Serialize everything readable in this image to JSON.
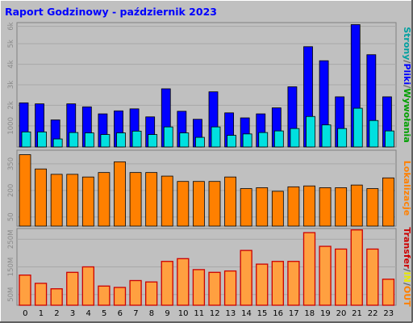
{
  "chart_data": [
    {
      "type": "bar",
      "title": "Raport Godzinowy -  październik 2023",
      "categories": [
        "0",
        "1",
        "2",
        "3",
        "4",
        "5",
        "6",
        "7",
        "8",
        "9",
        "10",
        "11",
        "12",
        "13",
        "14",
        "15",
        "16",
        "17",
        "18",
        "19",
        "20",
        "21",
        "22",
        "23"
      ],
      "ylabel_parts": [
        "Strony",
        "Pliki",
        "Wywołania"
      ],
      "ylabel_colors": {
        "Strony": "#00A0A0",
        "Pliki": "#0000FF",
        "Wywołania": "#00A000"
      },
      "yticks": [
        "1000",
        "2k",
        "3k",
        "4k",
        "5k",
        "6k"
      ],
      "ylim": [
        0,
        6200
      ],
      "grid": true,
      "series": [
        {
          "name": "Pliki",
          "color": "#0000FF",
          "values": [
            2200,
            2150,
            1350,
            2150,
            2000,
            1650,
            1800,
            1900,
            1500,
            2900,
            1780,
            1380,
            2750,
            1700,
            1450,
            1650,
            1950,
            3000,
            5000,
            4300,
            2500,
            6100,
            4600,
            2500
          ]
        },
        {
          "name": "Strony",
          "color": "#00E0E0",
          "values": [
            750,
            750,
            400,
            720,
            700,
            620,
            700,
            790,
            620,
            1000,
            700,
            480,
            1000,
            580,
            650,
            720,
            800,
            920,
            1520,
            1100,
            920,
            1930,
            1320,
            800
          ]
        }
      ]
    },
    {
      "type": "bar",
      "ylabel": "Lokalizacje",
      "ylabel_color": "#FF8000",
      "yticks": [
        "50",
        "200",
        "350"
      ],
      "ylim": [
        0,
        425
      ],
      "grid": true,
      "series": [
        {
          "name": "Lokalizacje",
          "color": "#FF8000",
          "values": [
            400,
            320,
            290,
            290,
            275,
            300,
            360,
            300,
            300,
            280,
            250,
            250,
            250,
            275,
            210,
            215,
            195,
            220,
            225,
            215,
            215,
            230,
            210,
            270
          ]
        }
      ]
    },
    {
      "type": "bar",
      "ylabel_parts": [
        "Transfer",
        "IN",
        "OUT"
      ],
      "ylabel_colors": {
        "Transfer": "#CC0000",
        "IN": "#E8E800",
        "OUT": "#FF8000"
      },
      "yticks": [
        "50M",
        "150M",
        "250M"
      ],
      "ylim": [
        0,
        280
      ],
      "grid": true,
      "series": [
        {
          "name": "Transfer",
          "color": "#FF9A3C",
          "values": [
            110,
            80,
            60,
            120,
            140,
            70,
            65,
            90,
            85,
            160,
            170,
            130,
            120,
            125,
            200,
            150,
            160,
            160,
            265,
            215,
            205,
            275,
            205,
            95
          ]
        }
      ]
    }
  ]
}
